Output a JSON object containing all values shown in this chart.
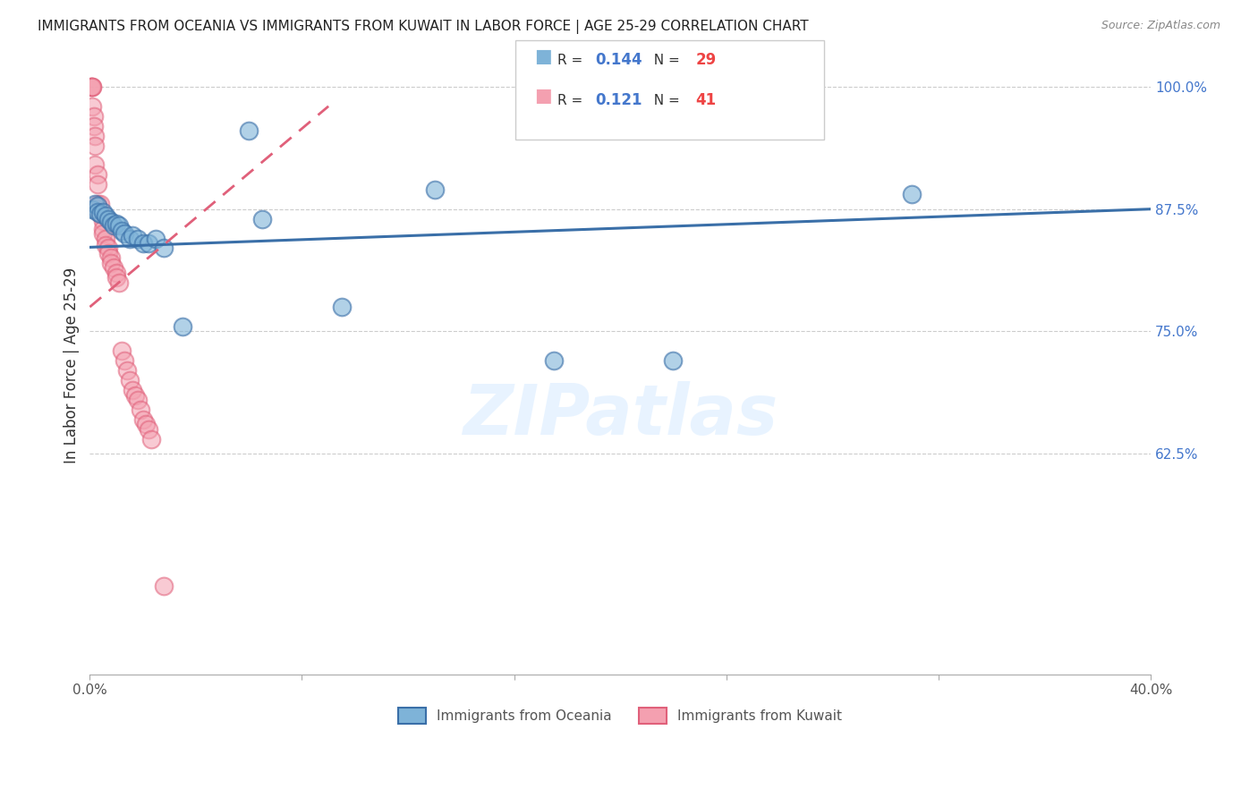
{
  "title": "IMMIGRANTS FROM OCEANIA VS IMMIGRANTS FROM KUWAIT IN LABOR FORCE | AGE 25-29 CORRELATION CHART",
  "source": "Source: ZipAtlas.com",
  "ylabel": "In Labor Force | Age 25-29",
  "xlim": [
    0.0,
    0.4
  ],
  "ylim": [
    0.4,
    1.03
  ],
  "xtick_positions": [
    0.0,
    0.08,
    0.16,
    0.24,
    0.32,
    0.4
  ],
  "xtick_labels": [
    "0.0%",
    "",
    "",
    "",
    "",
    "40.0%"
  ],
  "yticks_right": [
    0.625,
    0.75,
    0.875,
    1.0
  ],
  "ytick_labels_right": [
    "62.5%",
    "75.0%",
    "87.5%",
    "100.0%"
  ],
  "blue_color": "#7EB3D8",
  "pink_color": "#F4A0B0",
  "trend_blue": "#3A6FA8",
  "trend_pink": "#E0607A",
  "watermark": "ZIPatlas",
  "legend_label_blue": "Immigrants from Oceania",
  "legend_label_pink": "Immigrants from Kuwait",
  "oceania_x": [
    0.001,
    0.002,
    0.003,
    0.003,
    0.004,
    0.005,
    0.006,
    0.007,
    0.008,
    0.009,
    0.01,
    0.011,
    0.012,
    0.013,
    0.015,
    0.016,
    0.018,
    0.02,
    0.022,
    0.025,
    0.028,
    0.035,
    0.06,
    0.065,
    0.095,
    0.13,
    0.175,
    0.22,
    0.31
  ],
  "oceania_y": [
    0.875,
    0.88,
    0.878,
    0.872,
    0.87,
    0.872,
    0.868,
    0.865,
    0.862,
    0.858,
    0.86,
    0.858,
    0.853,
    0.85,
    0.845,
    0.848,
    0.845,
    0.84,
    0.84,
    0.845,
    0.835,
    0.755,
    0.955,
    0.865,
    0.775,
    0.895,
    0.72,
    0.72,
    0.89
  ],
  "kuwait_x": [
    0.0005,
    0.0005,
    0.001,
    0.001,
    0.001,
    0.0015,
    0.0015,
    0.002,
    0.002,
    0.002,
    0.003,
    0.003,
    0.003,
    0.004,
    0.004,
    0.005,
    0.005,
    0.005,
    0.006,
    0.006,
    0.007,
    0.007,
    0.008,
    0.008,
    0.009,
    0.01,
    0.01,
    0.011,
    0.012,
    0.013,
    0.014,
    0.015,
    0.016,
    0.017,
    0.018,
    0.019,
    0.02,
    0.021,
    0.022,
    0.023,
    0.028
  ],
  "kuwait_y": [
    1.0,
    1.0,
    1.0,
    1.0,
    0.98,
    0.97,
    0.96,
    0.95,
    0.94,
    0.92,
    0.91,
    0.9,
    0.88,
    0.88,
    0.87,
    0.863,
    0.855,
    0.85,
    0.845,
    0.838,
    0.835,
    0.83,
    0.825,
    0.82,
    0.815,
    0.81,
    0.805,
    0.8,
    0.73,
    0.72,
    0.71,
    0.7,
    0.69,
    0.685,
    0.68,
    0.67,
    0.66,
    0.655,
    0.65,
    0.64,
    0.49
  ],
  "blue_trend_x0": 0.0,
  "blue_trend_y0": 0.836,
  "blue_trend_x1": 0.4,
  "blue_trend_y1": 0.875,
  "pink_trend_x0": 0.0,
  "pink_trend_y0": 0.775,
  "pink_trend_x1": 0.09,
  "pink_trend_y1": 0.98
}
